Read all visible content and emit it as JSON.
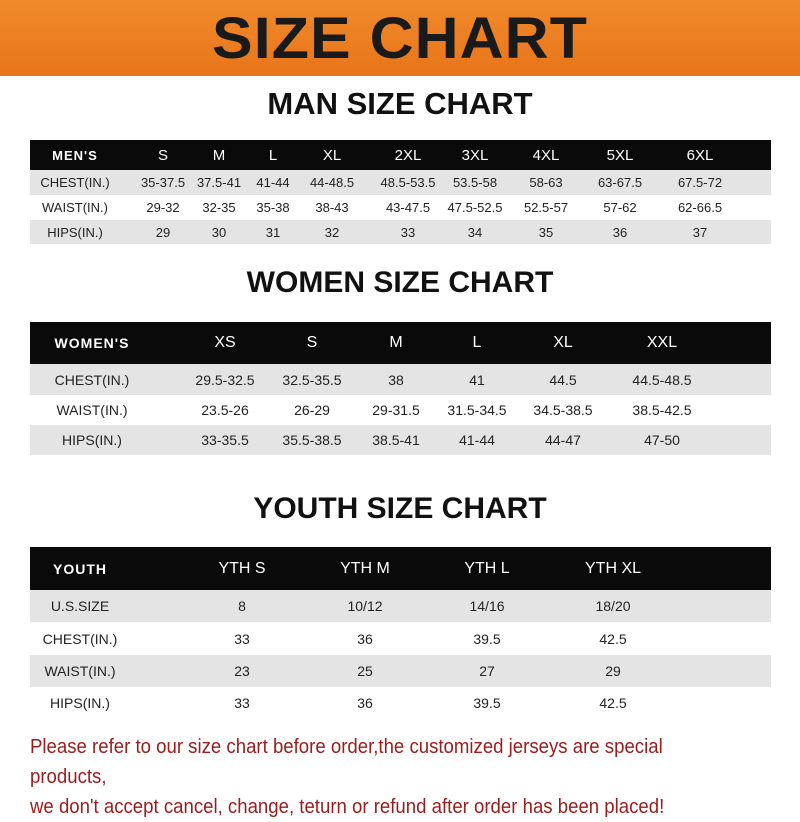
{
  "banner": {
    "title": "SIZE CHART",
    "color": "#ec7f22"
  },
  "men": {
    "title": "MAN SIZE CHART",
    "header": [
      "MEN'S",
      "S",
      "M",
      "L",
      "XL",
      "2XL",
      "3XL",
      "4XL",
      "5XL",
      "6XL"
    ],
    "rows": [
      [
        "CHEST(IN.)",
        "35-37.5",
        "37.5-41",
        "41-44",
        "44-48.5",
        "48.5-53.5",
        "53.5-58",
        "58-63",
        "63-67.5",
        "67.5-72"
      ],
      [
        "WAIST(IN.)",
        "29-32",
        "32-35",
        "35-38",
        "38-43",
        "43-47.5",
        "47.5-52.5",
        "52.5-57",
        "57-62",
        "62-66.5"
      ],
      [
        "HIPS(IN.)",
        "29",
        "30",
        "31",
        "32",
        "33",
        "34",
        "35",
        "36",
        "37"
      ]
    ]
  },
  "women": {
    "title": "WOMEN SIZE CHART",
    "header": [
      "WOMEN'S",
      "XS",
      "S",
      "M",
      "L",
      "XL",
      "XXL"
    ],
    "rows": [
      [
        "CHEST(IN.)",
        "29.5-32.5",
        "32.5-35.5",
        "38",
        "41",
        "44.5",
        "44.5-48.5"
      ],
      [
        "WAIST(IN.)",
        "23.5-26",
        "26-29",
        "29-31.5",
        "31.5-34.5",
        "34.5-38.5",
        "38.5-42.5"
      ],
      [
        "HIPS(IN.)",
        "33-35.5",
        "35.5-38.5",
        "38.5-41",
        "41-44",
        "44-47",
        "47-50"
      ]
    ]
  },
  "youth": {
    "title": "YOUTH SIZE CHART",
    "header": [
      "YOUTH",
      "YTH S",
      "YTH M",
      "YTH L",
      "YTH XL"
    ],
    "rows": [
      [
        "U.S.SIZE",
        "8",
        "10/12",
        "14/16",
        "18/20"
      ],
      [
        "CHEST(IN.)",
        "33",
        "36",
        "39.5",
        "42.5"
      ],
      [
        "WAIST(IN.)",
        "23",
        "25",
        "27",
        "29"
      ],
      [
        "HIPS(IN.)",
        "33",
        "36",
        "39.5",
        "42.5"
      ]
    ]
  },
  "note": {
    "line1": "Please refer to our size chart before order,the customized jerseys are special products,",
    "line2": "we don't accept cancel, change, teturn or refund after order has been placed!",
    "color": "#9b1c1c"
  }
}
